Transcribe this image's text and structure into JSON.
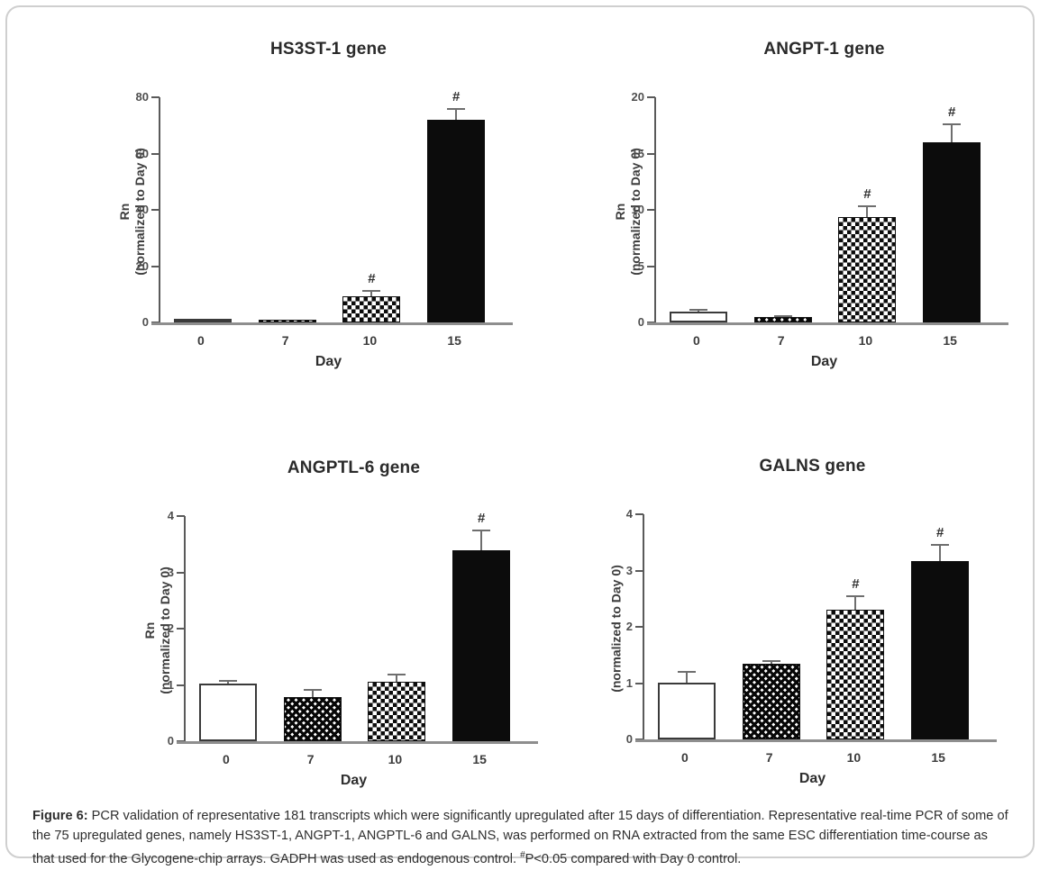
{
  "figure": {
    "caption_prefix": "Figure 6:",
    "caption_body": " PCR validation of representative 181 transcripts which were significantly upregulated after 15 days of differentiation. Representative real-time PCR of some of the 75 upregulated genes, namely HS3ST-1, ANGPT-1, ANGPTL-6 and GALNS, was performed on RNA extracted from the same ESC differentiation time-course as that used for the Glycogene-chip arrays. GADPH was used as endogenous control. ",
    "caption_sig_marker": "#",
    "caption_sig_text": "P<0.05 compared with Day 0 control."
  },
  "chart_data": [
    {
      "type": "bar",
      "title": "HS3ST-1 gene",
      "xlabel": "Day",
      "ylabel_lines": [
        "Rn",
        "(normalized to  Day 0)"
      ],
      "categories": [
        "0",
        "7",
        "10",
        "15"
      ],
      "values": [
        1.0,
        1.0,
        9.3,
        72
      ],
      "errors": [
        0,
        0,
        2.0,
        4.0
      ],
      "significance": [
        "",
        "",
        "#",
        "#"
      ],
      "patterns": [
        "open",
        "hatch",
        "checker",
        "solid"
      ],
      "ylim": [
        0,
        80
      ],
      "yticks": [
        0,
        20,
        40,
        60,
        80
      ],
      "legend": "none",
      "grid": "off"
    },
    {
      "type": "bar",
      "title": "ANGPT-1 gene",
      "xlabel": "Day",
      "ylabel_lines": [
        "Rn",
        "(normalized to  Day 0)"
      ],
      "categories": [
        "0",
        "7",
        "10",
        "15"
      ],
      "values": [
        1.0,
        0.45,
        9.4,
        16.0
      ],
      "errors": [
        0.1,
        0.12,
        0.9,
        1.6
      ],
      "significance": [
        "",
        "",
        "#",
        "#"
      ],
      "patterns": [
        "open",
        "hatch",
        "checker",
        "solid"
      ],
      "ylim": [
        0,
        20
      ],
      "yticks": [
        0,
        5,
        10,
        15,
        20
      ],
      "legend": "none",
      "grid": "off"
    },
    {
      "type": "bar",
      "title": "ANGPTL-6 gene",
      "xlabel": "Day",
      "ylabel_lines": [
        "Rn",
        "(normalized to  Day 0)"
      ],
      "categories": [
        "0",
        "7",
        "10",
        "15"
      ],
      "values": [
        1.02,
        0.79,
        1.05,
        3.4
      ],
      "errors": [
        0.05,
        0.13,
        0.14,
        0.34
      ],
      "significance": [
        "",
        "",
        "",
        "#"
      ],
      "patterns": [
        "open",
        "hatch",
        "checker",
        "solid"
      ],
      "ylim": [
        0,
        4
      ],
      "yticks": [
        0,
        1,
        2,
        3,
        4
      ],
      "legend": "none",
      "grid": "off"
    },
    {
      "type": "bar",
      "title": "GALNS gene",
      "xlabel": "Day",
      "ylabel_lines": [
        "(normalized to  Day 0)"
      ],
      "categories": [
        "0",
        "7",
        "10",
        "15"
      ],
      "values": [
        1.01,
        1.35,
        2.3,
        3.17
      ],
      "errors": [
        0.19,
        0.05,
        0.25,
        0.28
      ],
      "significance": [
        "",
        "",
        "#",
        "#"
      ],
      "patterns": [
        "open",
        "hatch",
        "checker",
        "solid"
      ],
      "ylim": [
        0,
        4
      ],
      "yticks": [
        0,
        1,
        2,
        3,
        4
      ],
      "legend": "none",
      "grid": "off"
    }
  ]
}
